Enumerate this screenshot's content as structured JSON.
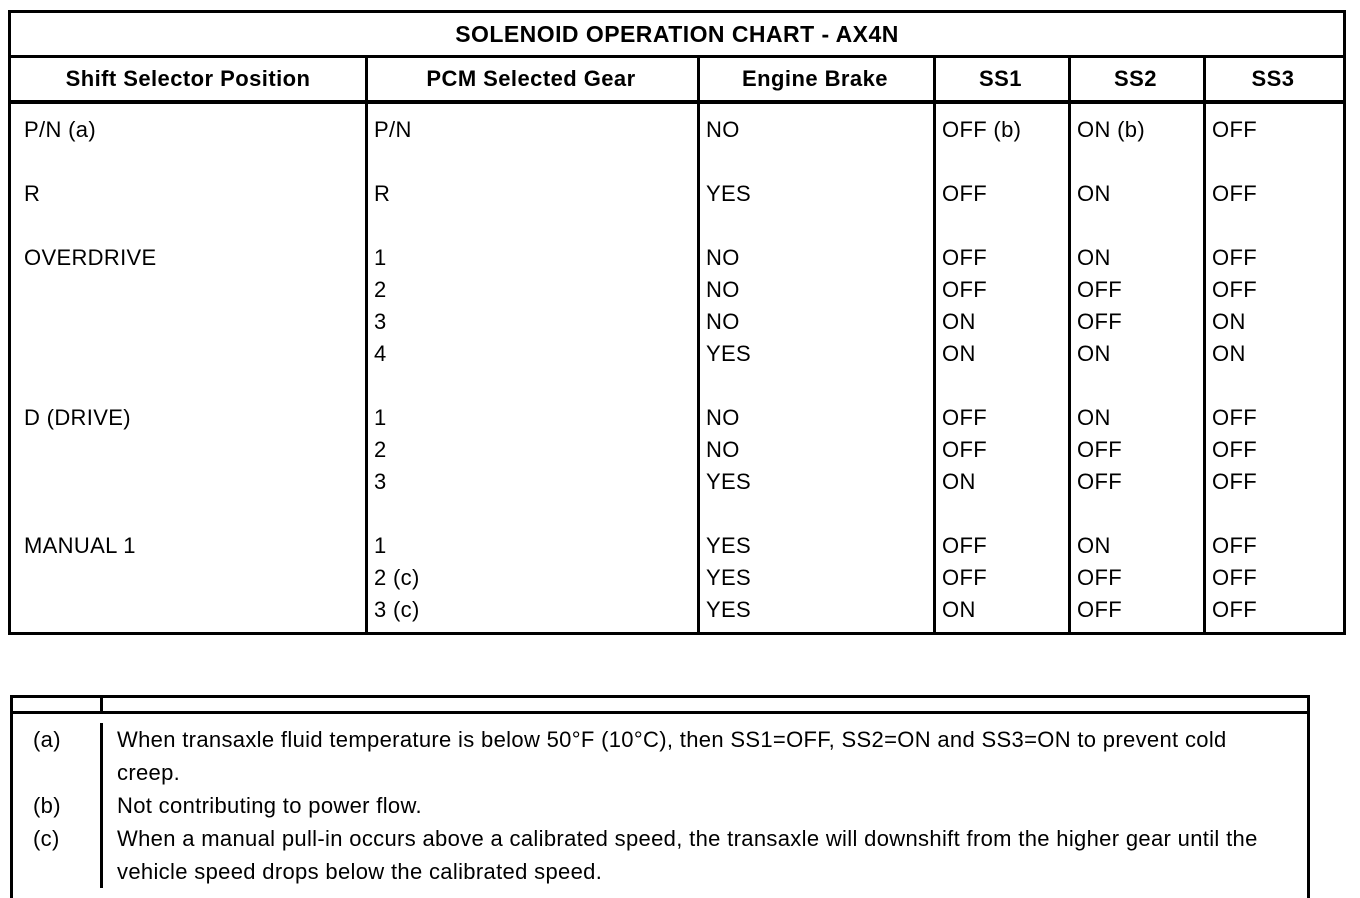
{
  "title": "SOLENOID OPERATION CHART - AX4N",
  "table": {
    "headers": [
      "Shift Selector Position",
      "PCM Selected Gear",
      "Engine Brake",
      "SS1",
      "SS2",
      "SS3"
    ],
    "rows": [
      [
        "P/N (a)",
        "P/N",
        "NO",
        "OFF (b)",
        "ON (b)",
        "OFF"
      ],
      [
        "R",
        "R",
        "YES",
        "OFF",
        "ON",
        "OFF"
      ],
      [
        "OVERDRIVE",
        "1",
        "NO",
        "OFF",
        "ON",
        "OFF"
      ],
      [
        "",
        "2",
        "NO",
        "OFF",
        "OFF",
        "OFF"
      ],
      [
        "",
        "3",
        "NO",
        "ON",
        "OFF",
        "ON"
      ],
      [
        "",
        "4",
        "YES",
        "ON",
        "ON",
        "ON"
      ],
      [
        "D (DRIVE)",
        "1",
        "NO",
        "OFF",
        "ON",
        "OFF"
      ],
      [
        "",
        "2",
        "NO",
        "OFF",
        "OFF",
        "OFF"
      ],
      [
        "",
        "3",
        "YES",
        "ON",
        "OFF",
        "OFF"
      ],
      [
        "MANUAL 1",
        "1",
        "YES",
        "OFF",
        "ON",
        "OFF"
      ],
      [
        "",
        "2 (c)",
        "YES",
        "OFF",
        "OFF",
        "OFF"
      ],
      [
        "",
        "3 (c)",
        "YES",
        "ON",
        "OFF",
        "OFF"
      ]
    ]
  },
  "footnotes": [
    {
      "label": "(a)",
      "text": "When transaxle fluid temperature is below 50°F (10°C), then SS1=OFF, SS2=ON and SS3=ON to prevent cold creep."
    },
    {
      "label": "(b)",
      "text": "Not contributing to power flow."
    },
    {
      "label": "(c)",
      "text": "When a manual pull-in occurs above a calibrated speed, the transaxle will downshift from the higher gear until the vehicle speed drops below the calibrated speed."
    }
  ],
  "colors": {
    "ink": "#000000",
    "paper": "#ffffff"
  }
}
